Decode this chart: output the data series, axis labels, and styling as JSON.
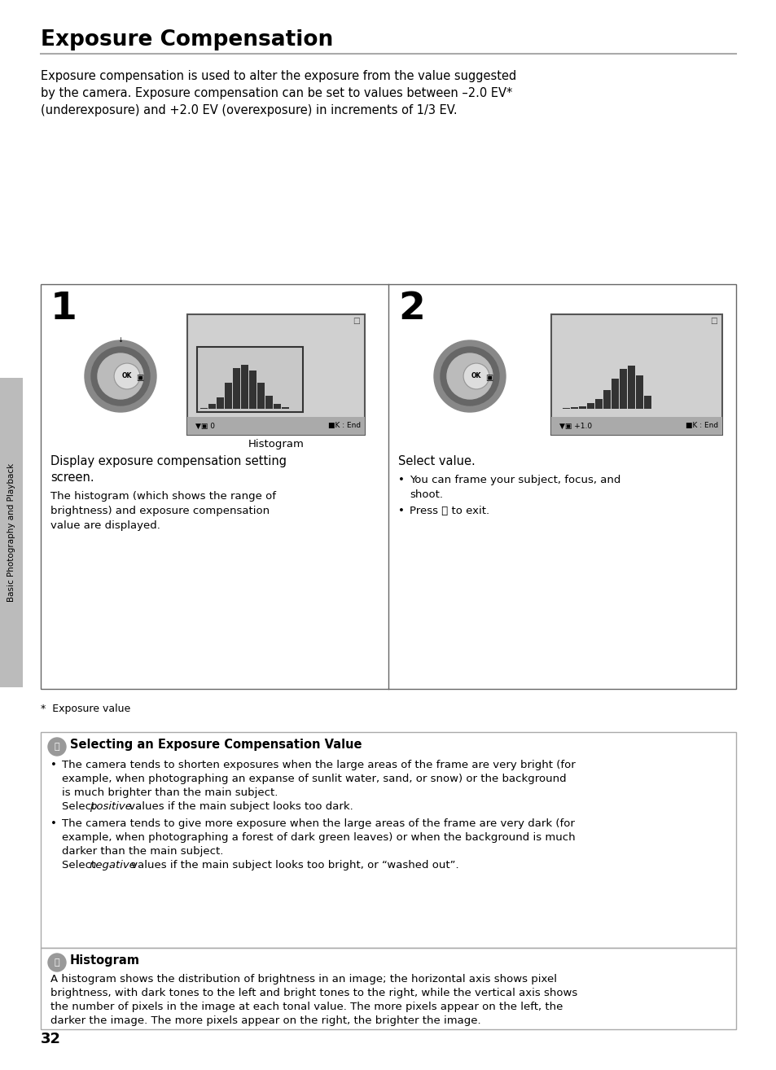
{
  "title": "Exposure Compensation",
  "bg_color": "#ffffff",
  "intro_line1": "Exposure compensation is used to alter the exposure from the value suggested",
  "intro_line2": "by the camera. Exposure compensation can be set to values between –2.0 EV*",
  "intro_line3": "(underexposure) and +2.0 EV (overexposure) in increments of 1/3 EV.",
  "step1_num": "1",
  "step2_num": "2",
  "step1_label": "Histogram",
  "step1_title_line1": "Display exposure compensation setting",
  "step1_title_line2": "screen.",
  "step1_body_line1": "The histogram (which shows the range of",
  "step1_body_line2": "brightness) and exposure compensation",
  "step1_body_line3": "value are displayed.",
  "step2_title": "Select value.",
  "step2_b1_line1": "You can frame your subject, focus, and",
  "step2_b1_line2": "shoot.",
  "step2_b2": "Press ⒪ to exit.",
  "footnote": "*  Exposure value",
  "sidebar_text": "Basic Photography and Playback",
  "box1_title": "Selecting an Exposure Compensation Value",
  "box1_b1_l1": "The camera tends to shorten exposures when the large areas of the frame are very bright (for",
  "box1_b1_l2": "example, when photographing an expanse of sunlit water, sand, or snow) or the background",
  "box1_b1_l3": "is much brighter than the main subject.",
  "box1_b1_l4a": "Select ",
  "box1_b1_l4b": "positive",
  "box1_b1_l4c": " values if the main subject looks too dark.",
  "box1_b2_l1": "The camera tends to give more exposure when the large areas of the frame are very dark (for",
  "box1_b2_l2": "example, when photographing a forest of dark green leaves) or when the background is much",
  "box1_b2_l3": "darker than the main subject.",
  "box1_b2_l4a": "Select ",
  "box1_b2_l4b": "negative",
  "box1_b2_l4c": " values if the main subject looks too bright, or “washed out”.",
  "box2_title": "Histogram",
  "box2_l1": "A histogram shows the distribution of brightness in an image; the horizontal axis shows pixel",
  "box2_l2": "brightness, with dark tones to the left and bright tones to the right, while the vertical axis shows",
  "box2_l3": "the number of pixels in the image at each tonal value. The more pixels appear on the left, the",
  "box2_l4": "darker the image. The more pixels appear on the right, the brighter the image.",
  "page_num": "32",
  "gray_light": "#d0d0d0",
  "gray_medium": "#999999",
  "gray_dark": "#555555",
  "gray_sidebar": "#bbbbbb",
  "border_color": "#aaaaaa",
  "step_border": "#666666"
}
